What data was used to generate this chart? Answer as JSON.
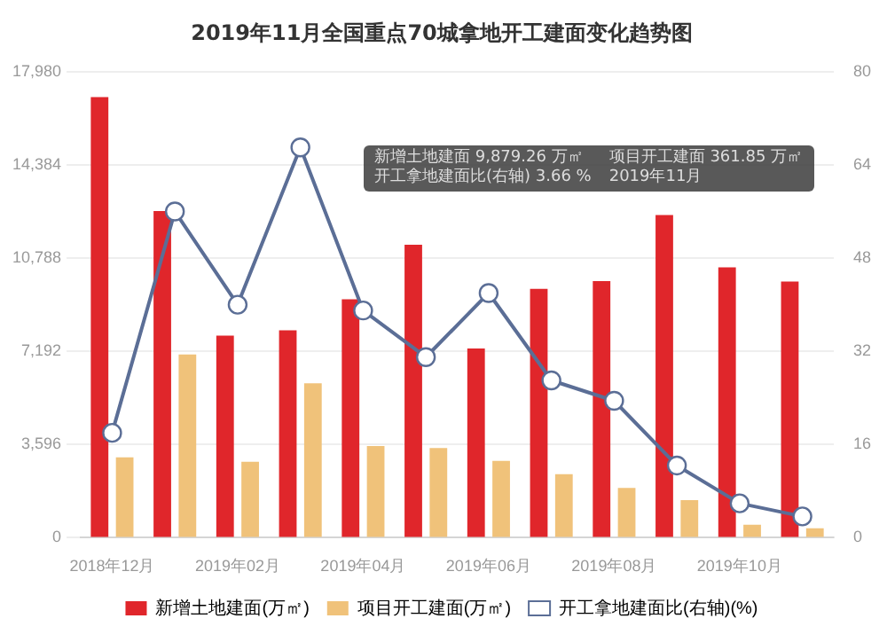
{
  "chart_data": {
    "type": "bar",
    "title": "2019年11月全国重点70城拿地开工建面变化趋势图",
    "categories": [
      "2018年12月",
      null,
      "2019年02月",
      null,
      "2019年04月",
      null,
      "2019年06月",
      null,
      "2019年08月",
      null,
      "2019年10月",
      null
    ],
    "series": [
      {
        "name": "新增土地建面(万㎡)",
        "color": "#e0262b",
        "values": [
          17000,
          12600,
          7800,
          8000,
          9200,
          11300,
          7300,
          9600,
          9900,
          12450,
          10430,
          9879.26
        ]
      },
      {
        "name": "项目开工建面(万㎡)",
        "color": "#f0c27a",
        "values": [
          3100,
          7070,
          2930,
          5960,
          3540,
          3460,
          2960,
          2450,
          1920,
          1450,
          505,
          361.85
        ]
      },
      {
        "name": "开工拿地建面比(右轴)(%)",
        "type": "line",
        "axis": "y2",
        "color": "#5b6e96",
        "marker": "circle",
        "values": [
          18,
          56,
          40,
          67,
          39,
          31,
          42,
          27,
          23.5,
          12.4,
          5.9,
          3.66
        ]
      }
    ],
    "ylim": [
      0,
      17980
    ],
    "yticks": [
      0,
      {
        "value": 3596,
        "label": "3,596"
      },
      {
        "value": 7192,
        "label": "7,192"
      },
      {
        "value": 10788,
        "label": "10,788"
      },
      {
        "value": 14384,
        "label": "14,384"
      },
      {
        "value": 17980,
        "label": "17,980"
      }
    ],
    "y2lim": [
      0,
      80
    ],
    "y2ticks": [
      0,
      16,
      32,
      48,
      64,
      80
    ],
    "grid": "y",
    "legend": "bottom",
    "annotations": [
      "新增土地建面 9,879.26 万㎡",
      "项目开工建面 361.85 万㎡",
      "开工拿地建面比(右轴) 3.66 %",
      "2019年11月"
    ]
  }
}
